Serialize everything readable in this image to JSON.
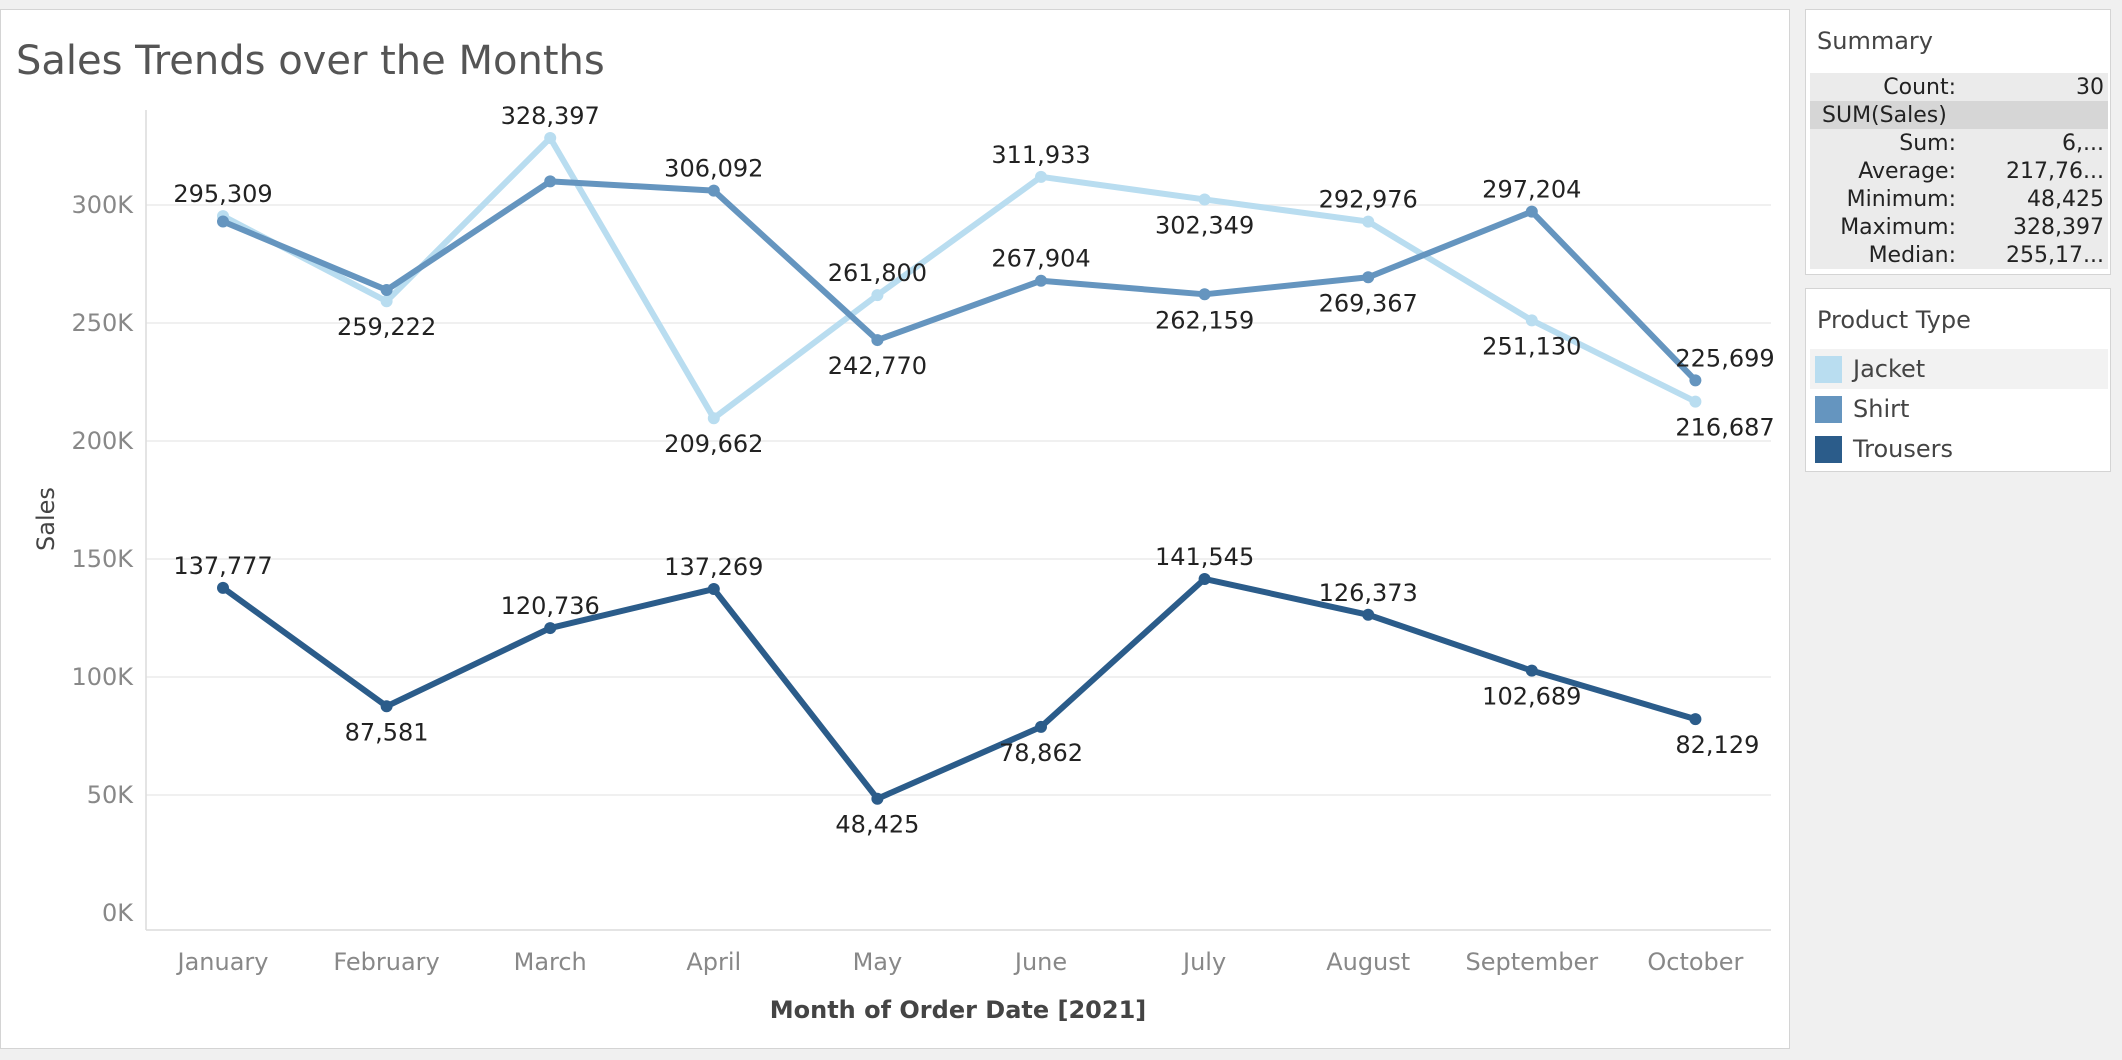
{
  "chart_data": {
    "type": "line",
    "title": "Sales Trends over the Months",
    "xlabel": "Month of Order Date [2021]",
    "ylabel": "Sales",
    "ylim": [
      0,
      350000
    ],
    "yticks": [
      {
        "value": 0,
        "label": "0K"
      },
      {
        "value": 50000,
        "label": "50K"
      },
      {
        "value": 100000,
        "label": "100K"
      },
      {
        "value": 150000,
        "label": "150K"
      },
      {
        "value": 200000,
        "label": "200K"
      },
      {
        "value": 250000,
        "label": "250K"
      },
      {
        "value": 300000,
        "label": "300K"
      }
    ],
    "grid": true,
    "categories": [
      "January",
      "February",
      "March",
      "April",
      "May",
      "June",
      "July",
      "August",
      "September",
      "October"
    ],
    "series": [
      {
        "name": "Jacket",
        "color": "#b9ddf0",
        "values": [
          295309,
          259222,
          328397,
          209662,
          261800,
          311933,
          302349,
          292976,
          251130,
          216687
        ],
        "labels": [
          "295,309",
          "259,222",
          "328,397",
          "209,662",
          "261,800",
          "311,933",
          "302,349",
          "292,976",
          "251,130",
          "216,687"
        ],
        "label_pos": [
          "above",
          "below",
          "above",
          "below",
          "above",
          "above",
          "below",
          "above",
          "below",
          "below"
        ]
      },
      {
        "name": "Shirt",
        "color": "#6595bf",
        "values": [
          293000,
          264000,
          310000,
          306092,
          242770,
          267904,
          262159,
          269367,
          297204,
          225699
        ],
        "labels": [
          null,
          null,
          null,
          "306,092",
          "242,770",
          "267,904",
          "262,159",
          "269,367",
          "297,204",
          "225,699"
        ],
        "label_pos": [
          null,
          null,
          null,
          "above",
          "below",
          "above",
          "below",
          "below",
          "above",
          "above"
        ]
      },
      {
        "name": "Trousers",
        "color": "#2b5c8a",
        "values": [
          137777,
          87581,
          120736,
          137269,
          48425,
          78862,
          141545,
          126373,
          102689,
          82129
        ],
        "labels": [
          "137,777",
          "87,581",
          "120,736",
          "137,269",
          "48,425",
          "78,862",
          "141,545",
          "126,373",
          "102,689",
          "82,129"
        ],
        "label_pos": [
          "above",
          "below",
          "above",
          "above",
          "below",
          "below",
          "above",
          "above",
          "below",
          "below"
        ]
      }
    ],
    "legend": {
      "title": "Product Type",
      "placement": "right"
    }
  },
  "summary": {
    "title": "Summary",
    "count_label": "Count:",
    "count_value": "30",
    "measure": "SUM(Sales)",
    "rows": [
      {
        "label": "Sum:",
        "value": "6,..."
      },
      {
        "label": "Average:",
        "value": "217,76..."
      },
      {
        "label": "Minimum:",
        "value": "48,425"
      },
      {
        "label": "Maximum:",
        "value": "328,397"
      },
      {
        "label": "Median:",
        "value": "255,17..."
      }
    ]
  }
}
